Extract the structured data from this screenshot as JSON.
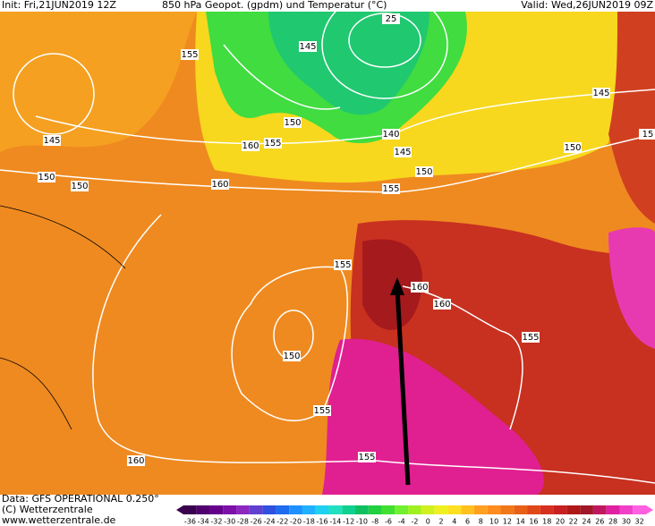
{
  "header": {
    "init": "Init: Fri,21JUN2019 12Z",
    "title": "850 hPa Geopot. (gpdm) und Temperatur (°C)",
    "valid": "Valid: Wed,26JUN2019 09Z"
  },
  "footer": {
    "data": "Data: GFS OPERATIONAL 0.250°",
    "copyright": "(C) Wetterzentrale",
    "url": "www.wetterzentrale.de"
  },
  "contour_labels": [
    "25",
    "145",
    "155",
    "145",
    "150",
    "150",
    "150",
    "160",
    "155",
    "160",
    "140",
    "145",
    "150",
    "155",
    "150",
    "145",
    "15",
    "155",
    "160",
    "160",
    "150",
    "155",
    "155",
    "155",
    "160"
  ],
  "colorbar": {
    "ticks": [
      -36,
      -34,
      -32,
      -30,
      -28,
      -26,
      -24,
      -22,
      -20,
      -18,
      -16,
      -14,
      -12,
      -10,
      -8,
      -6,
      -4,
      -2,
      0,
      2,
      4,
      6,
      8,
      10,
      12,
      14,
      16,
      18,
      20,
      22,
      24,
      26,
      28,
      30,
      32
    ],
    "colors": [
      "#3a0050",
      "#50006e",
      "#66008c",
      "#7c10a8",
      "#8c28c0",
      "#6040d0",
      "#3050e0",
      "#1e6cf0",
      "#1e90ff",
      "#20b0ff",
      "#20d0f0",
      "#20e0c0",
      "#10d090",
      "#10c060",
      "#20d040",
      "#40e030",
      "#70f030",
      "#a0f020",
      "#d0f020",
      "#f0f020",
      "#ffe020",
      "#ffc020",
      "#ffa020",
      "#ff8c1e",
      "#f07818",
      "#e86018",
      "#e04818",
      "#d83020",
      "#c82020",
      "#b01818",
      "#a01828",
      "#c01860",
      "#e020a0",
      "#f040c8",
      "#ff60e0"
    ]
  }
}
